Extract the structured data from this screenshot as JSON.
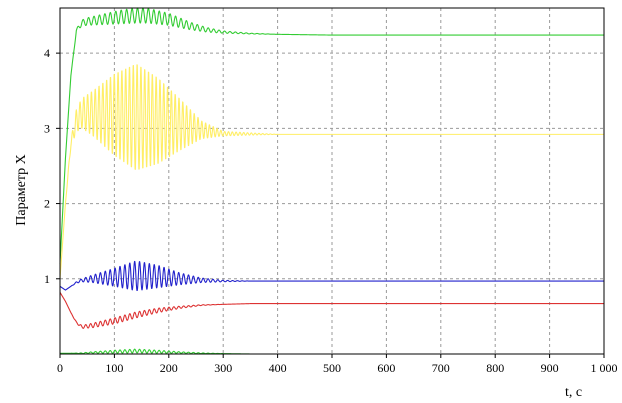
{
  "chart_data": {
    "type": "line",
    "title": "",
    "xlabel": "t, c",
    "ylabel": "Параметр X",
    "xlim": [
      0,
      1000
    ],
    "ylim": [
      0,
      4.6
    ],
    "x_ticks": [
      0,
      100,
      200,
      300,
      400,
      500,
      600,
      700,
      800,
      900,
      1000
    ],
    "x_tick_labels": [
      "0",
      "100",
      "200",
      "300",
      "400",
      "500",
      "600",
      "700",
      "800",
      "900",
      "1 000"
    ],
    "y_ticks": [
      1,
      2,
      3,
      4
    ],
    "y_tick_labels": [
      "1",
      "2",
      "3",
      "4"
    ],
    "grid": true,
    "grid_style": "dashed",
    "background": "#ffffff",
    "series": [
      {
        "color": "#33cc33",
        "x": [
          0,
          10,
          20,
          30,
          40,
          50,
          80,
          110,
          140,
          160,
          200,
          240,
          270,
          300,
          350,
          400,
          500,
          600,
          700,
          800,
          900,
          1000
        ],
        "y": [
          1.2,
          2.6,
          3.7,
          4.3,
          4.4,
          4.42,
          4.45,
          4.48,
          4.5,
          4.5,
          4.45,
          4.36,
          4.31,
          4.28,
          4.26,
          4.25,
          4.24,
          4.24,
          4.24,
          4.24,
          4.24,
          4.24
        ],
        "osc_amplitude": [
          0,
          0,
          0,
          0.02,
          0.04,
          0.05,
          0.07,
          0.09,
          0.1,
          0.1,
          0.08,
          0.05,
          0.03,
          0.015,
          0.005,
          0,
          0,
          0,
          0,
          0,
          0,
          0
        ],
        "osc_period": 10
      },
      {
        "color": "#ffee66",
        "x": [
          0,
          10,
          20,
          30,
          40,
          60,
          100,
          140,
          180,
          220,
          260,
          300,
          400,
          500,
          600,
          700,
          800,
          900,
          1000
        ],
        "y": [
          1.0,
          2.0,
          2.8,
          3.1,
          3.2,
          3.2,
          3.18,
          3.15,
          3.1,
          3.05,
          2.98,
          2.93,
          2.92,
          2.92,
          2.92,
          2.92,
          2.92,
          2.92,
          2.92
        ],
        "osc_amplitude": [
          0,
          0,
          0.05,
          0.15,
          0.2,
          0.3,
          0.55,
          0.72,
          0.58,
          0.35,
          0.12,
          0.03,
          0,
          0,
          0,
          0,
          0,
          0,
          0
        ],
        "osc_period": 7
      },
      {
        "color": "#2222cc",
        "x": [
          0,
          10,
          20,
          30,
          40,
          60,
          100,
          140,
          180,
          220,
          260,
          300,
          350,
          400,
          500,
          600,
          700,
          800,
          900,
          1000
        ],
        "y": [
          0.9,
          0.85,
          0.9,
          0.95,
          0.98,
          1.0,
          1.02,
          1.04,
          1.03,
          1.0,
          0.98,
          0.97,
          0.97,
          0.97,
          0.97,
          0.97,
          0.97,
          0.97,
          0.97,
          0.97
        ],
        "osc_amplitude": [
          0,
          0,
          0,
          0.01,
          0.02,
          0.05,
          0.12,
          0.2,
          0.15,
          0.08,
          0.03,
          0.01,
          0,
          0,
          0,
          0,
          0,
          0,
          0,
          0
        ],
        "osc_period": 9
      },
      {
        "color": "#dd3333",
        "x": [
          0,
          10,
          20,
          30,
          40,
          60,
          100,
          140,
          180,
          220,
          260,
          300,
          350,
          400,
          500,
          600,
          700,
          800,
          900,
          1000
        ],
        "y": [
          0.82,
          0.7,
          0.55,
          0.42,
          0.36,
          0.38,
          0.44,
          0.52,
          0.58,
          0.62,
          0.65,
          0.66,
          0.67,
          0.67,
          0.67,
          0.67,
          0.67,
          0.67,
          0.67,
          0.67
        ],
        "osc_amplitude": [
          0,
          0,
          0,
          0.01,
          0.02,
          0.03,
          0.04,
          0.04,
          0.03,
          0.015,
          0.005,
          0,
          0,
          0,
          0,
          0,
          0,
          0,
          0,
          0
        ],
        "osc_period": 9
      },
      {
        "color": "#33cc33",
        "x": [
          0,
          20,
          40,
          60,
          100,
          140,
          180,
          220,
          260,
          300,
          350
        ],
        "y": [
          0.01,
          0.01,
          0.01,
          0.02,
          0.03,
          0.04,
          0.03,
          0.02,
          0.01,
          0.005,
          0
        ],
        "osc_amplitude": [
          0,
          0,
          0.005,
          0.01,
          0.02,
          0.025,
          0.02,
          0.01,
          0.005,
          0,
          0
        ],
        "osc_period": 9
      }
    ]
  }
}
